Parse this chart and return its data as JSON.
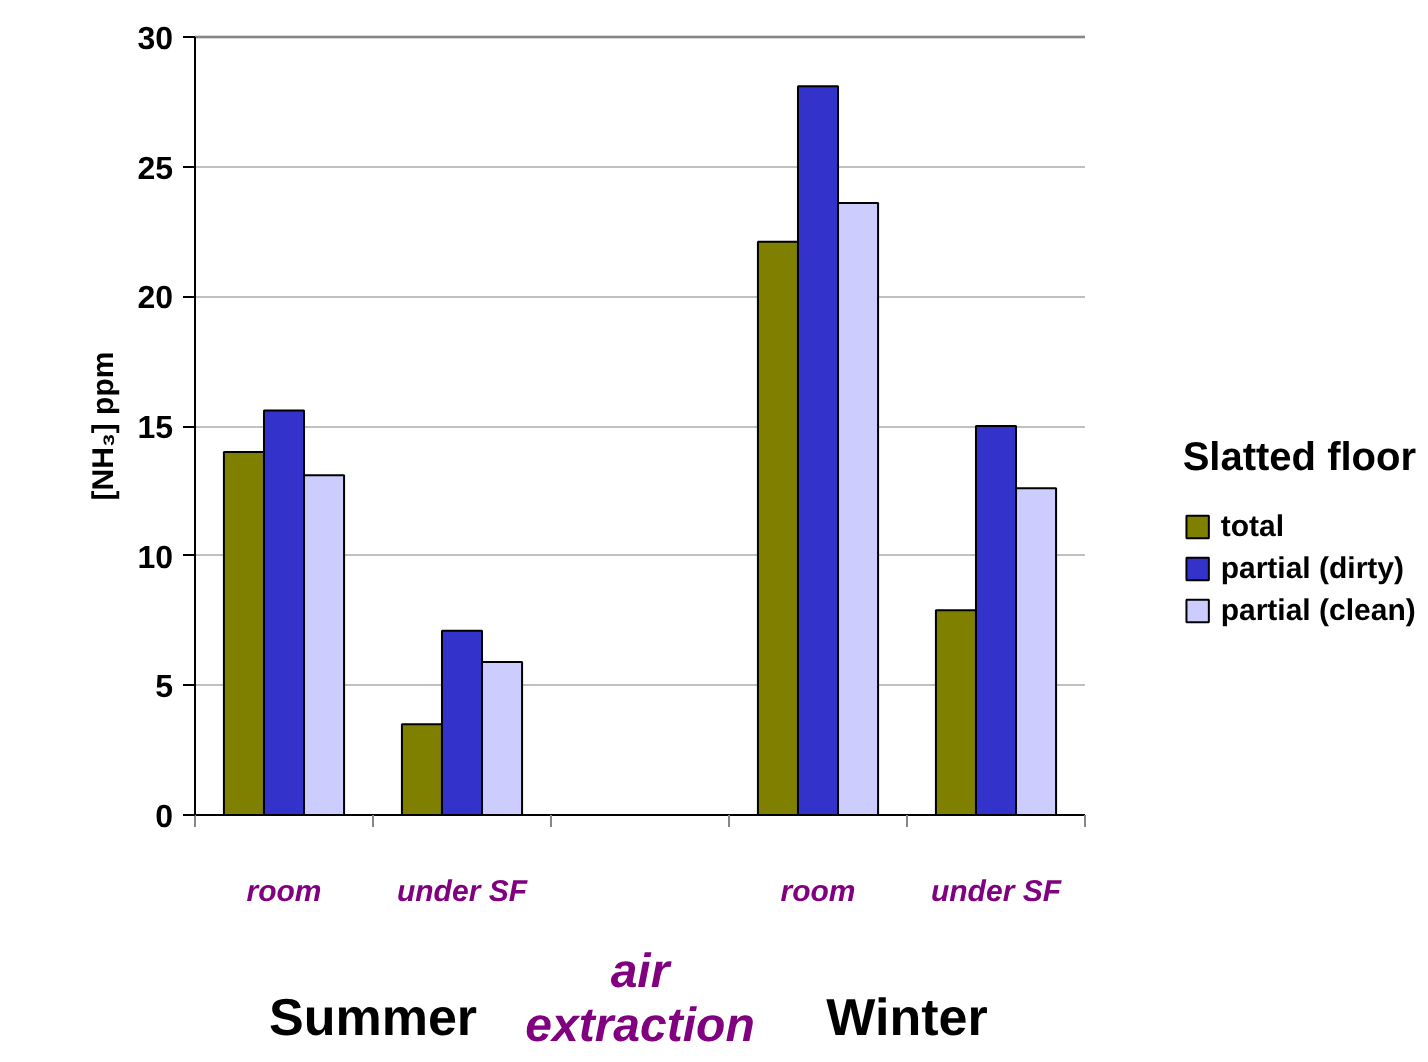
{
  "chart_data": {
    "type": "bar",
    "ylabel": "[NH₃] ppm",
    "legend_title": "Slatted floor",
    "categories": [
      "room",
      "under SF",
      null,
      "room",
      "under SF"
    ],
    "series": [
      {
        "name": "total",
        "color": "#808000",
        "values": [
          14.0,
          3.5,
          null,
          22.1,
          7.9
        ]
      },
      {
        "name": "partial (dirty)",
        "color": "#3333cc",
        "values": [
          15.6,
          7.1,
          null,
          28.1,
          15.0
        ]
      },
      {
        "name": "partial (clean)",
        "color": "#ccccff",
        "values": [
          13.1,
          5.9,
          null,
          23.6,
          12.6
        ]
      }
    ],
    "ylim": [
      0,
      30
    ],
    "yticks": [
      0,
      5,
      10,
      15,
      20,
      25,
      30
    ],
    "grid": "y",
    "legend": "right",
    "annotations": [
      "Summer",
      "air extraction",
      "Winter"
    ]
  }
}
